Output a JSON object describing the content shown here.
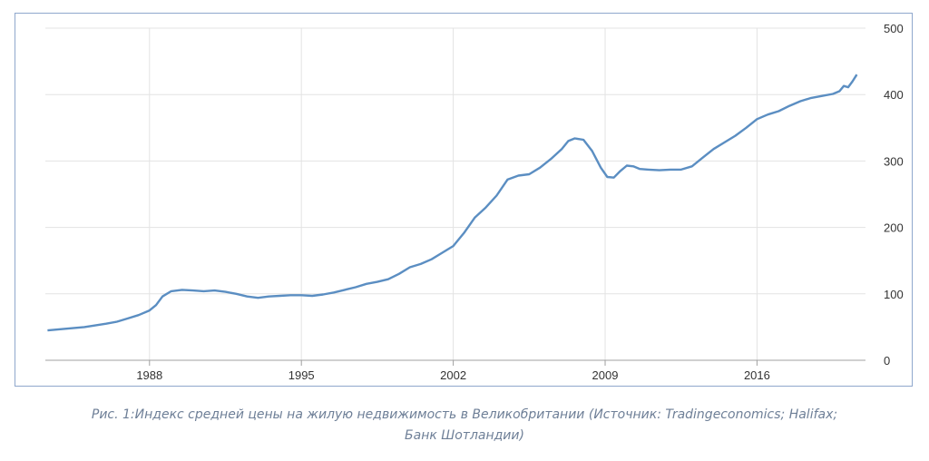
{
  "caption": {
    "line1": "Рис. 1:Индекс средней цены на жилую  недвижимость в Великобритании (Источник: Tradingeconomics; Halifax;",
    "line2": "Банк Шотландии)"
  },
  "colors": {
    "line": "#5b8ec2",
    "grid": "#e3e3e3",
    "frame": "#8fa7cc",
    "axis": "#a0a0a0",
    "text": "#333333"
  },
  "chart_data": {
    "type": "line",
    "title": "",
    "xlabel": "",
    "ylabel": "",
    "x_ticks": [
      "1988",
      "1995",
      "2002",
      "2009",
      "2016"
    ],
    "y_ticks": [
      "0",
      "100",
      "200",
      "300",
      "400",
      "500"
    ],
    "xlim": [
      1983.2,
      2021.0
    ],
    "ylim": [
      0,
      500
    ],
    "grid": true,
    "legend": "none",
    "series": [
      {
        "x": [
          1983.3,
          1984.0,
          1985.0,
          1986.0,
          1986.5,
          1987.0,
          1987.5,
          1988.0,
          1988.3,
          1988.6,
          1989.0,
          1989.5,
          1990.0,
          1990.5,
          1991.0,
          1991.5,
          1992.0,
          1992.5,
          1993.0,
          1993.5,
          1994.0,
          1994.5,
          1995.0,
          1995.5,
          1996.0,
          1996.5,
          1997.0,
          1997.5,
          1998.0,
          1998.5,
          1999.0,
          1999.5,
          2000.0,
          2000.5,
          2001.0,
          2001.5,
          2002.0,
          2002.5,
          2003.0,
          2003.5,
          2004.0,
          2004.5,
          2005.0,
          2005.5,
          2006.0,
          2006.5,
          2007.0,
          2007.3,
          2007.6,
          2008.0,
          2008.4,
          2008.8,
          2009.1,
          2009.4,
          2009.7,
          2010.0,
          2010.3,
          2010.6,
          2011.0,
          2011.5,
          2012.0,
          2012.5,
          2013.0,
          2013.5,
          2014.0,
          2014.5,
          2015.0,
          2015.5,
          2016.0,
          2016.5,
          2017.0,
          2017.5,
          2018.0,
          2018.5,
          2019.0,
          2019.5,
          2019.8,
          2020.0,
          2020.2,
          2020.4,
          2020.6
        ],
        "values": [
          45,
          47,
          50,
          55,
          58,
          63,
          68,
          75,
          83,
          96,
          104,
          106,
          105,
          104,
          105,
          103,
          100,
          96,
          94,
          96,
          97,
          98,
          98,
          97,
          99,
          102,
          106,
          110,
          115,
          118,
          122,
          130,
          140,
          145,
          152,
          162,
          172,
          192,
          215,
          230,
          248,
          272,
          278,
          280,
          290,
          303,
          318,
          330,
          334,
          332,
          315,
          290,
          276,
          275,
          285,
          293,
          292,
          288,
          287,
          286,
          287,
          287,
          292,
          305,
          318,
          328,
          338,
          350,
          363,
          370,
          375,
          383,
          390,
          395,
          398,
          401,
          405,
          413,
          411,
          420,
          430
        ]
      }
    ]
  }
}
